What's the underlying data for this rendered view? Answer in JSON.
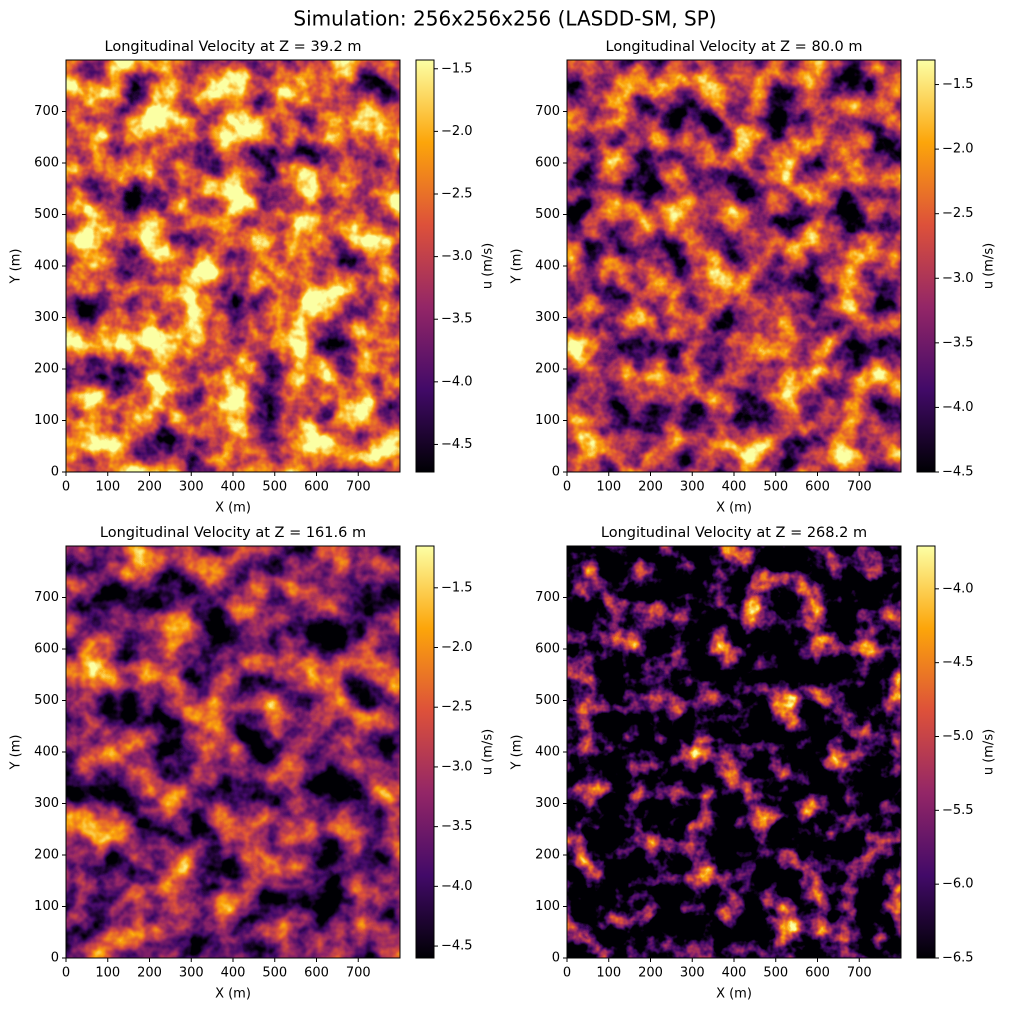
{
  "title": "Simulation: 256x256x256 (LASDD-SM, SP)",
  "chart_data": [
    {
      "type": "heatmap",
      "title": "Longitudinal Velocity at Z = 39.2 m",
      "xlabel": "X (m)",
      "ylabel": "Y (m)",
      "xlim": [
        0,
        800
      ],
      "ylim": [
        0,
        800
      ],
      "xticks": [
        0,
        100,
        200,
        300,
        400,
        500,
        600,
        700
      ],
      "yticks": [
        0,
        100,
        200,
        300,
        400,
        500,
        600,
        700
      ],
      "colormap": [
        "#000004",
        "#420a68",
        "#932667",
        "#dd513a",
        "#fca50a",
        "#fcffa4"
      ],
      "colorbar": {
        "label": "u (m/s)",
        "clim": [
          -4.72,
          -1.43
        ],
        "ticks": [
          {
            "value": -4.5,
            "label": "−4.5"
          },
          {
            "value": -4.0,
            "label": "−4.0"
          },
          {
            "value": -3.5,
            "label": "−3.5"
          },
          {
            "value": -3.0,
            "label": "−3.0"
          },
          {
            "value": -2.5,
            "label": "−2.5"
          },
          {
            "value": -2.0,
            "label": "−2.0"
          },
          {
            "value": -1.5,
            "label": "−1.5"
          }
        ]
      }
    },
    {
      "type": "heatmap",
      "title": "Longitudinal Velocity at Z = 80.0 m",
      "xlabel": "X (m)",
      "ylabel": "Y (m)",
      "xlim": [
        0,
        800
      ],
      "ylim": [
        0,
        800
      ],
      "xticks": [
        0,
        100,
        200,
        300,
        400,
        500,
        600,
        700
      ],
      "yticks": [
        0,
        100,
        200,
        300,
        400,
        500,
        600,
        700
      ],
      "colormap": [
        "#000004",
        "#420a68",
        "#932667",
        "#dd513a",
        "#fca50a",
        "#fcffa4"
      ],
      "colorbar": {
        "label": "u (m/s)",
        "clim": [
          -4.5,
          -1.31
        ],
        "ticks": [
          {
            "value": -4.5,
            "label": "−4.5"
          },
          {
            "value": -4.0,
            "label": "−4.0"
          },
          {
            "value": -3.5,
            "label": "−3.5"
          },
          {
            "value": -3.0,
            "label": "−3.0"
          },
          {
            "value": -2.5,
            "label": "−2.5"
          },
          {
            "value": -2.0,
            "label": "−2.0"
          },
          {
            "value": -1.5,
            "label": "−1.5"
          }
        ]
      }
    },
    {
      "type": "heatmap",
      "title": "Longitudinal Velocity at Z = 161.6 m",
      "xlabel": "X (m)",
      "ylabel": "Y (m)",
      "xlim": [
        0,
        800
      ],
      "ylim": [
        0,
        800
      ],
      "xticks": [
        0,
        100,
        200,
        300,
        400,
        500,
        600,
        700
      ],
      "yticks": [
        0,
        100,
        200,
        300,
        400,
        500,
        600,
        700
      ],
      "colormap": [
        "#000004",
        "#420a68",
        "#932667",
        "#dd513a",
        "#fca50a",
        "#fcffa4"
      ],
      "colorbar": {
        "label": "u (m/s)",
        "clim": [
          -4.6,
          -1.15
        ],
        "ticks": [
          {
            "value": -4.5,
            "label": "−4.5"
          },
          {
            "value": -4.0,
            "label": "−4.0"
          },
          {
            "value": -3.5,
            "label": "−3.5"
          },
          {
            "value": -3.0,
            "label": "−3.0"
          },
          {
            "value": -2.5,
            "label": "−2.5"
          },
          {
            "value": -2.0,
            "label": "−2.0"
          },
          {
            "value": -1.5,
            "label": "−1.5"
          }
        ]
      }
    },
    {
      "type": "heatmap",
      "title": "Longitudinal Velocity at Z = 268.2 m",
      "xlabel": "X (m)",
      "ylabel": "Y (m)",
      "xlim": [
        0,
        800
      ],
      "ylim": [
        0,
        800
      ],
      "xticks": [
        0,
        100,
        200,
        300,
        400,
        500,
        600,
        700
      ],
      "yticks": [
        0,
        100,
        200,
        300,
        400,
        500,
        600,
        700
      ],
      "colormap": [
        "#000004",
        "#420a68",
        "#932667",
        "#dd513a",
        "#fca50a",
        "#fcffa4"
      ],
      "colorbar": {
        "label": "u (m/s)",
        "clim": [
          -6.5,
          -3.71
        ],
        "ticks": [
          {
            "value": -6.5,
            "label": "−6.5"
          },
          {
            "value": -6.0,
            "label": "−6.0"
          },
          {
            "value": -5.5,
            "label": "−5.5"
          },
          {
            "value": -5.0,
            "label": "−5.0"
          },
          {
            "value": -4.5,
            "label": "−4.5"
          },
          {
            "value": -4.0,
            "label": "−4.0"
          }
        ]
      }
    }
  ]
}
